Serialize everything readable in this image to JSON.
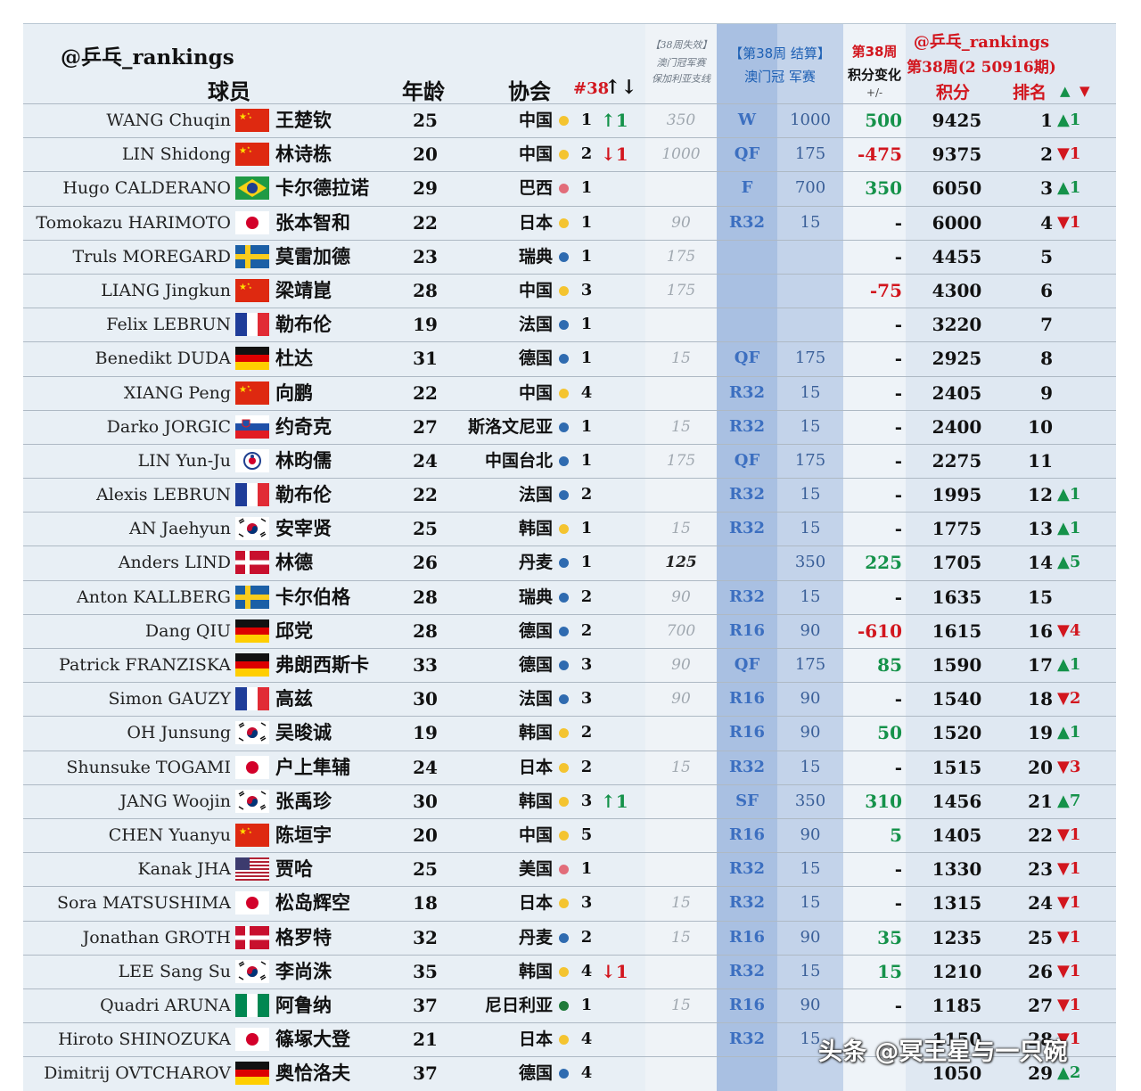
{
  "header": {
    "brand": "@乒乓_rankings",
    "player": "球员",
    "age": "年龄",
    "assoc": "协会",
    "week": "#38",
    "week_arrows": "↑↓",
    "lost_line1": "【38周失效】",
    "lost_line2": "澳门冠军赛",
    "lost_line3": "保加利亚支线",
    "macao_line1": "【第38周 结算】",
    "macao_line2": "澳门冠 军赛",
    "change_line1": "第38周",
    "change_line2": "积分变化",
    "change_line3": "+/-",
    "pr_line1": "@乒乓_rankings",
    "pr_line2": "第38周(2 50916期)",
    "points": "积分",
    "rank": "排名",
    "up_glyph": "▲",
    "down_glyph": "▼"
  },
  "colors": {
    "red": "#d2161e",
    "green": "#15924a",
    "blue": "#1c5fb4",
    "dot_yellow": "#f4c430",
    "dot_blue": "#2f6bb0",
    "dot_pink": "#e26d7a",
    "dot_green": "#1f7a3a"
  },
  "rows": [
    {
      "en": "WANG Chuqin",
      "flag": "china",
      "cn": "王楚钦",
      "age": "25",
      "assoc": "中国",
      "dot": "yellow",
      "wk": "1",
      "move": "↑1",
      "move_dir": "up",
      "lost": "350",
      "stage": "W",
      "stage_pts": "1000",
      "change": "500",
      "change_dir": "up",
      "total": "9425",
      "rank": "1",
      "trend": "▲1",
      "trend_dir": "up"
    },
    {
      "en": "LIN Shidong",
      "flag": "china",
      "cn": "林诗栋",
      "age": "20",
      "assoc": "中国",
      "dot": "yellow",
      "wk": "2",
      "move": "↓1",
      "move_dir": "down",
      "lost": "1000",
      "stage": "QF",
      "stage_pts": "175",
      "change": "-475",
      "change_dir": "down",
      "total": "9375",
      "rank": "2",
      "trend": "▼1",
      "trend_dir": "down"
    },
    {
      "en": "Hugo CALDERANO",
      "flag": "brazil",
      "cn": "卡尔德拉诺",
      "age": "29",
      "assoc": "巴西",
      "dot": "pink",
      "wk": "1",
      "move": "",
      "move_dir": "",
      "lost": "",
      "stage": "F",
      "stage_pts": "700",
      "change": "350",
      "change_dir": "up",
      "total": "6050",
      "rank": "3",
      "trend": "▲1",
      "trend_dir": "up"
    },
    {
      "en": "Tomokazu HARIMOTO",
      "flag": "japan",
      "cn": "张本智和",
      "age": "22",
      "assoc": "日本",
      "dot": "yellow",
      "wk": "1",
      "move": "",
      "move_dir": "",
      "lost": "90",
      "stage": "R32",
      "stage_pts": "15",
      "change": "-",
      "change_dir": "",
      "total": "6000",
      "rank": "4",
      "trend": "▼1",
      "trend_dir": "down"
    },
    {
      "en": "Truls MOREGARD",
      "flag": "sweden",
      "cn": "莫雷加德",
      "age": "23",
      "assoc": "瑞典",
      "dot": "blue",
      "wk": "1",
      "move": "",
      "move_dir": "",
      "lost": "175",
      "stage": "",
      "stage_pts": "",
      "change": "-",
      "change_dir": "",
      "total": "4455",
      "rank": "5",
      "trend": "",
      "trend_dir": ""
    },
    {
      "en": "LIANG Jingkun",
      "flag": "china",
      "cn": "梁靖崑",
      "age": "28",
      "assoc": "中国",
      "dot": "yellow",
      "wk": "3",
      "move": "",
      "move_dir": "",
      "lost": "175",
      "stage": "",
      "stage_pts": "",
      "change": "-75",
      "change_dir": "down",
      "total": "4300",
      "rank": "6",
      "trend": "",
      "trend_dir": ""
    },
    {
      "en": "Felix LEBRUN",
      "flag": "france",
      "cn": "勒布伦",
      "age": "19",
      "assoc": "法国",
      "dot": "blue",
      "wk": "1",
      "move": "",
      "move_dir": "",
      "lost": "",
      "stage": "",
      "stage_pts": "",
      "change": "-",
      "change_dir": "",
      "total": "3220",
      "rank": "7",
      "trend": "",
      "trend_dir": ""
    },
    {
      "en": "Benedikt DUDA",
      "flag": "germany",
      "cn": "杜达",
      "age": "31",
      "assoc": "德国",
      "dot": "blue",
      "wk": "1",
      "move": "",
      "move_dir": "",
      "lost": "15",
      "stage": "QF",
      "stage_pts": "175",
      "change": "-",
      "change_dir": "",
      "total": "2925",
      "rank": "8",
      "trend": "",
      "trend_dir": ""
    },
    {
      "en": "XIANG Peng",
      "flag": "china",
      "cn": "向鹏",
      "age": "22",
      "assoc": "中国",
      "dot": "yellow",
      "wk": "4",
      "move": "",
      "move_dir": "",
      "lost": "",
      "stage": "R32",
      "stage_pts": "15",
      "change": "-",
      "change_dir": "",
      "total": "2405",
      "rank": "9",
      "trend": "",
      "trend_dir": ""
    },
    {
      "en": "Darko JORGIC",
      "flag": "slovenia",
      "cn": "约奇克",
      "age": "27",
      "assoc": "斯洛文尼亚",
      "dot": "blue",
      "wk": "1",
      "move": "",
      "move_dir": "",
      "lost": "15",
      "stage": "R32",
      "stage_pts": "15",
      "change": "-",
      "change_dir": "",
      "total": "2400",
      "rank": "10",
      "trend": "",
      "trend_dir": ""
    },
    {
      "en": "LIN Yun-Ju",
      "flag": "taipei",
      "cn": "林昀儒",
      "age": "24",
      "assoc": "中国台北",
      "dot": "blue",
      "wk": "1",
      "move": "",
      "move_dir": "",
      "lost": "175",
      "stage": "QF",
      "stage_pts": "175",
      "change": "-",
      "change_dir": "",
      "total": "2275",
      "rank": "11",
      "trend": "",
      "trend_dir": ""
    },
    {
      "en": "Alexis LEBRUN",
      "flag": "france",
      "cn": "勒布伦",
      "age": "22",
      "assoc": "法国",
      "dot": "blue",
      "wk": "2",
      "move": "",
      "move_dir": "",
      "lost": "",
      "stage": "R32",
      "stage_pts": "15",
      "change": "-",
      "change_dir": "",
      "total": "1995",
      "rank": "12",
      "trend": "▲1",
      "trend_dir": "up"
    },
    {
      "en": "AN Jaehyun",
      "flag": "korea",
      "cn": "安宰贤",
      "age": "25",
      "assoc": "韩国",
      "dot": "yellow",
      "wk": "1",
      "move": "",
      "move_dir": "",
      "lost": "15",
      "stage": "R32",
      "stage_pts": "15",
      "change": "-",
      "change_dir": "",
      "total": "1775",
      "rank": "13",
      "trend": "▲1",
      "trend_dir": "up"
    },
    {
      "en": "Anders LIND",
      "flag": "denmark",
      "cn": "林德",
      "age": "26",
      "assoc": "丹麦",
      "dot": "blue",
      "wk": "1",
      "move": "",
      "move_dir": "",
      "lost": "125",
      "lost_strong": true,
      "stage": "",
      "stage_pts": "350",
      "change": "225",
      "change_dir": "up",
      "total": "1705",
      "rank": "14",
      "trend": "▲5",
      "trend_dir": "up"
    },
    {
      "en": "Anton KALLBERG",
      "flag": "sweden",
      "cn": "卡尔伯格",
      "age": "28",
      "assoc": "瑞典",
      "dot": "blue",
      "wk": "2",
      "move": "",
      "move_dir": "",
      "lost": "90",
      "stage": "R32",
      "stage_pts": "15",
      "change": "-",
      "change_dir": "",
      "total": "1635",
      "rank": "15",
      "trend": "",
      "trend_dir": ""
    },
    {
      "en": "Dang QIU",
      "flag": "germany",
      "cn": "邱党",
      "age": "28",
      "assoc": "德国",
      "dot": "blue",
      "wk": "2",
      "move": "",
      "move_dir": "",
      "lost": "700",
      "stage": "R16",
      "stage_pts": "90",
      "change": "-610",
      "change_dir": "down",
      "total": "1615",
      "rank": "16",
      "trend": "▼4",
      "trend_dir": "down"
    },
    {
      "en": "Patrick FRANZISKA",
      "flag": "germany",
      "cn": "弗朗西斯卡",
      "age": "33",
      "assoc": "德国",
      "dot": "blue",
      "wk": "3",
      "move": "",
      "move_dir": "",
      "lost": "90",
      "stage": "QF",
      "stage_pts": "175",
      "change": "85",
      "change_dir": "up",
      "total": "1590",
      "rank": "17",
      "trend": "▲1",
      "trend_dir": "up"
    },
    {
      "en": "Simon GAUZY",
      "flag": "france",
      "cn": "高兹",
      "age": "30",
      "assoc": "法国",
      "dot": "blue",
      "wk": "3",
      "move": "",
      "move_dir": "",
      "lost": "90",
      "stage": "R16",
      "stage_pts": "90",
      "change": "-",
      "change_dir": "",
      "total": "1540",
      "rank": "18",
      "trend": "▼2",
      "trend_dir": "down"
    },
    {
      "en": "OH Junsung",
      "flag": "korea",
      "cn": "吴晙诚",
      "age": "19",
      "assoc": "韩国",
      "dot": "yellow",
      "wk": "2",
      "move": "",
      "move_dir": "",
      "lost": "",
      "stage": "R16",
      "stage_pts": "90",
      "change": "50",
      "change_dir": "up",
      "total": "1520",
      "rank": "19",
      "trend": "▲1",
      "trend_dir": "up"
    },
    {
      "en": "Shunsuke TOGAMI",
      "flag": "japan",
      "cn": "户上隼辅",
      "age": "24",
      "assoc": "日本",
      "dot": "yellow",
      "wk": "2",
      "move": "",
      "move_dir": "",
      "lost": "15",
      "stage": "R32",
      "stage_pts": "15",
      "change": "-",
      "change_dir": "",
      "total": "1515",
      "rank": "20",
      "trend": "▼3",
      "trend_dir": "down"
    },
    {
      "en": "JANG Woojin",
      "flag": "korea",
      "cn": "张禹珍",
      "age": "30",
      "assoc": "韩国",
      "dot": "yellow",
      "wk": "3",
      "move": "↑1",
      "move_dir": "up",
      "lost": "",
      "stage": "SF",
      "stage_pts": "350",
      "change": "310",
      "change_dir": "up",
      "total": "1456",
      "rank": "21",
      "trend": "▲7",
      "trend_dir": "up"
    },
    {
      "en": "CHEN Yuanyu",
      "flag": "china",
      "cn": "陈垣宇",
      "age": "20",
      "assoc": "中国",
      "dot": "yellow",
      "wk": "5",
      "move": "",
      "move_dir": "",
      "lost": "",
      "stage": "R16",
      "stage_pts": "90",
      "change": "5",
      "change_dir": "up",
      "total": "1405",
      "rank": "22",
      "trend": "▼1",
      "trend_dir": "down"
    },
    {
      "en": "Kanak JHA",
      "flag": "usa",
      "cn": "贾哈",
      "age": "25",
      "assoc": "美国",
      "dot": "pink",
      "wk": "1",
      "move": "",
      "move_dir": "",
      "lost": "",
      "stage": "R32",
      "stage_pts": "15",
      "change": "-",
      "change_dir": "",
      "total": "1330",
      "rank": "23",
      "trend": "▼1",
      "trend_dir": "down"
    },
    {
      "en": "Sora MATSUSHIMA",
      "flag": "japan",
      "cn": "松岛辉空",
      "age": "18",
      "assoc": "日本",
      "dot": "yellow",
      "wk": "3",
      "move": "",
      "move_dir": "",
      "lost": "15",
      "stage": "R32",
      "stage_pts": "15",
      "change": "-",
      "change_dir": "",
      "total": "1315",
      "rank": "24",
      "trend": "▼1",
      "trend_dir": "down"
    },
    {
      "en": "Jonathan GROTH",
      "flag": "denmark",
      "cn": "格罗特",
      "age": "32",
      "assoc": "丹麦",
      "dot": "blue",
      "wk": "2",
      "move": "",
      "move_dir": "",
      "lost": "15",
      "stage": "R16",
      "stage_pts": "90",
      "change": "35",
      "change_dir": "up",
      "total": "1235",
      "rank": "25",
      "trend": "▼1",
      "trend_dir": "down"
    },
    {
      "en": "LEE Sang Su",
      "flag": "korea",
      "cn": "李尚洙",
      "age": "35",
      "assoc": "韩国",
      "dot": "yellow",
      "wk": "4",
      "move": "↓1",
      "move_dir": "down",
      "lost": "",
      "stage": "R32",
      "stage_pts": "15",
      "change": "15",
      "change_dir": "up",
      "total": "1210",
      "rank": "26",
      "trend": "▼1",
      "trend_dir": "down"
    },
    {
      "en": "Quadri ARUNA",
      "flag": "nigeria",
      "cn": "阿鲁纳",
      "age": "37",
      "assoc": "尼日利亚",
      "dot": "green",
      "wk": "1",
      "move": "",
      "move_dir": "",
      "lost": "15",
      "stage": "R16",
      "stage_pts": "90",
      "change": "-",
      "change_dir": "",
      "total": "1185",
      "rank": "27",
      "trend": "▼1",
      "trend_dir": "down"
    },
    {
      "en": "Hiroto SHINOZUKA",
      "flag": "japan",
      "cn": "篠塚大登",
      "age": "21",
      "assoc": "日本",
      "dot": "yellow",
      "wk": "4",
      "move": "",
      "move_dir": "",
      "lost": "",
      "stage": "R32",
      "stage_pts": "15",
      "change": "",
      "change_dir": "",
      "total": "1150",
      "rank": "28",
      "trend": "▼1",
      "trend_dir": "down"
    },
    {
      "en": "Dimitrij OVTCHAROV",
      "flag": "germany",
      "cn": "奥恰洛夫",
      "age": "37",
      "assoc": "德国",
      "dot": "blue",
      "wk": "4",
      "move": "",
      "move_dir": "",
      "lost": "",
      "stage": "",
      "stage_pts": "",
      "change": "",
      "change_dir": "",
      "total": "1050",
      "rank": "29",
      "trend": "▲2",
      "trend_dir": "up"
    }
  ],
  "watermark": "头条 @冥王星与一只碗"
}
